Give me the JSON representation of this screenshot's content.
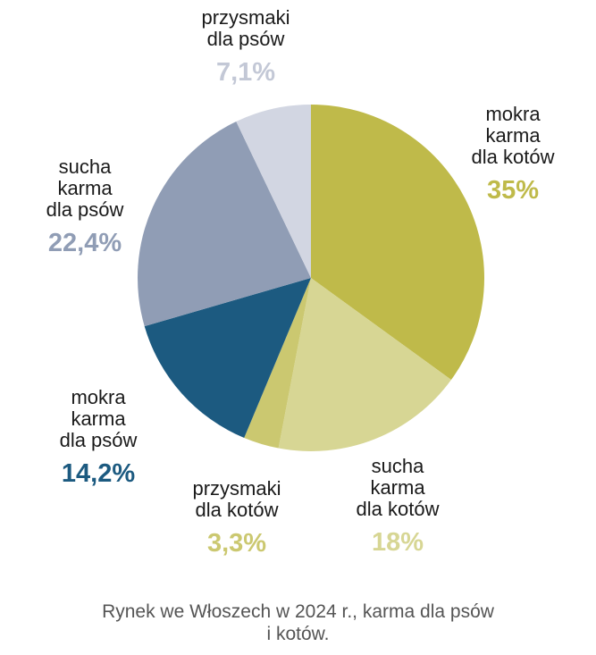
{
  "chart_data": {
    "type": "pie",
    "slices": [
      {
        "label_lines": [
          "mokra",
          "karma",
          "dla kotów"
        ],
        "value": 35,
        "value_label": "35%",
        "color": "#bfba4a",
        "label_color": "#bfba4a"
      },
      {
        "label_lines": [
          "sucha",
          "karma",
          "dla kotów"
        ],
        "value": 18,
        "value_label": "18%",
        "color": "#d7d694",
        "label_color": "#d7d694"
      },
      {
        "label_lines": [
          "przysmaki",
          "dla kotów"
        ],
        "value": 3.3,
        "value_label": "3,3%",
        "color": "#cbc870",
        "label_color": "#cbc870"
      },
      {
        "label_lines": [
          "mokra",
          "karma",
          "dla psów"
        ],
        "value": 14.2,
        "value_label": "14,2%",
        "color": "#1c5a80",
        "label_color": "#1c5a80"
      },
      {
        "label_lines": [
          "sucha",
          "karma",
          "dla psów"
        ],
        "value": 22.4,
        "value_label": "22,4%",
        "color": "#909db5",
        "label_color": "#909db5"
      },
      {
        "label_lines": [
          "przysmaki",
          "dla psów"
        ],
        "value": 7.1,
        "value_label": "7,1%",
        "color": "#d2d6e2",
        "label_color": "#c3c8d6"
      }
    ],
    "start_angle": "12 o'clock",
    "direction": "clockwise",
    "legend": "none",
    "caption_lines": [
      "Rynek we Włoszech w 2024 r., karma dla psów",
      "i kotów."
    ]
  }
}
